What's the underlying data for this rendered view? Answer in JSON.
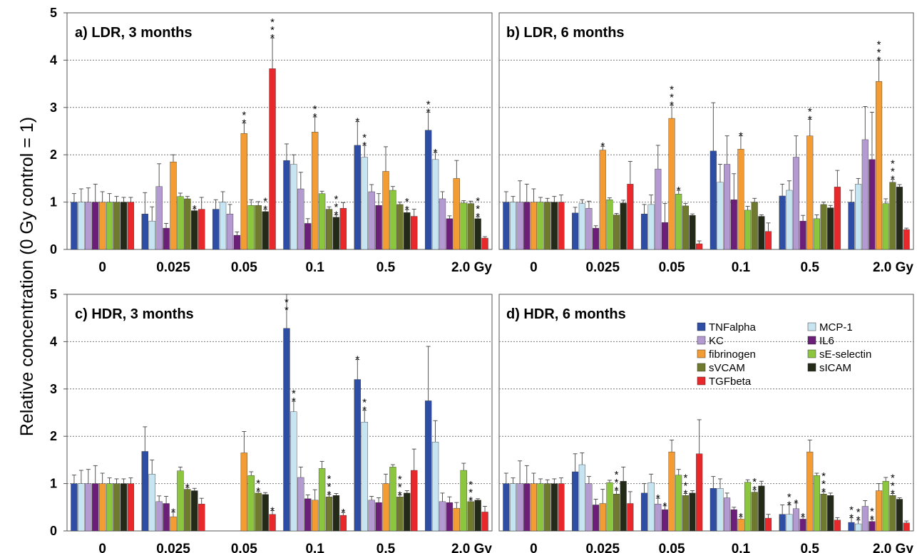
{
  "chart_data": {
    "type": "bar",
    "ylabel": "Relative concentration (0 Gy control = 1)",
    "ylim": [
      0,
      5
    ],
    "yticks": [
      0,
      1,
      2,
      3,
      4,
      5
    ],
    "grid": "horizontal dotted",
    "categories": [
      "0",
      "0.025",
      "0.05",
      "0.1",
      "0.5",
      "2.0 Gy"
    ],
    "legend": {
      "placement": "inside panel d, top-right",
      "entries": [
        {
          "name": "TNFalpha",
          "color": "#2e4ea6"
        },
        {
          "name": "MCP-1",
          "color": "#c6e4f2"
        },
        {
          "name": "KC",
          "color": "#b39ad0"
        },
        {
          "name": "IL6",
          "color": "#6b1f78"
        },
        {
          "name": "fibrinogen",
          "color": "#f39c33"
        },
        {
          "name": "sE-selectin",
          "color": "#8cc63f"
        },
        {
          "name": "sVCAM",
          "color": "#6f7a2e"
        },
        {
          "name": "sICAM",
          "color": "#232a18"
        },
        {
          "name": "TGFbeta",
          "color": "#e8282b"
        }
      ]
    },
    "panels": [
      {
        "title": "a) LDR, 3 months",
        "series": [
          {
            "name": "TNFalpha",
            "values": [
              1.0,
              0.75,
              0.85,
              1.88,
              2.2,
              2.52
            ],
            "errors": [
              0.18,
              0.45,
              0.2,
              0.35,
              0.5,
              0.38
            ],
            "stars": [
              0,
              0,
              0,
              0,
              1,
              2
            ]
          },
          {
            "name": "MCP-1",
            "values": [
              1.0,
              0.6,
              1.0,
              1.8,
              1.95,
              1.9
            ],
            "errors": [
              0.28,
              0.3,
              0.22,
              0.2,
              0.25,
              0.15
            ],
            "stars": [
              0,
              0,
              0,
              0,
              2,
              1
            ]
          },
          {
            "name": "KC",
            "values": [
              1.0,
              1.33,
              0.75,
              1.28,
              1.22,
              1.07
            ],
            "errors": [
              0.3,
              0.48,
              0.2,
              0.35,
              0.15,
              0.15
            ],
            "stars": [
              0,
              0,
              0,
              0,
              0,
              0
            ]
          },
          {
            "name": "IL6",
            "values": [
              1.0,
              0.45,
              0.3,
              0.55,
              0.93,
              0.65
            ],
            "errors": [
              0.38,
              0.1,
              0.07,
              0.1,
              0.25,
              0.06
            ],
            "stars": [
              0,
              0,
              0,
              0,
              0,
              0
            ]
          },
          {
            "name": "fibrinogen",
            "values": [
              1.0,
              1.85,
              2.45,
              2.48,
              1.65,
              1.5
            ],
            "errors": [
              0.22,
              0.15,
              0.22,
              0.32,
              0.52,
              0.38
            ],
            "stars": [
              0,
              0,
              2,
              2,
              0,
              0
            ]
          },
          {
            "name": "sE-selectin",
            "values": [
              1.0,
              1.12,
              0.93,
              1.18,
              1.25,
              0.98
            ],
            "errors": [
              0.18,
              0.07,
              0.12,
              0.05,
              0.08,
              0.05
            ],
            "stars": [
              0,
              0,
              0,
              0,
              0,
              0
            ]
          },
          {
            "name": "sVCAM",
            "values": [
              1.0,
              1.07,
              0.93,
              0.85,
              0.95,
              0.97
            ],
            "errors": [
              0.12,
              0.05,
              0.08,
              0.05,
              0.05,
              0.05
            ],
            "stars": [
              0,
              0,
              0,
              0,
              0,
              0
            ]
          },
          {
            "name": "sICAM",
            "values": [
              1.0,
              0.82,
              0.8,
              0.68,
              0.78,
              0.65
            ],
            "errors": [
              0.1,
              0.04,
              0.05,
              0.05,
              0.06,
              0.04
            ],
            "stars": [
              0,
              1,
              2,
              3,
              2,
              3
            ]
          },
          {
            "name": "TGFbeta",
            "values": [
              1.0,
              0.85,
              3.82,
              0.87,
              0.7,
              0.24
            ],
            "errors": [
              0.1,
              0.25,
              0.65,
              0.12,
              0.15,
              0.03
            ],
            "stars": [
              0,
              0,
              3,
              0,
              0,
              0
            ]
          }
        ]
      },
      {
        "title": "b) LDR, 6 months",
        "series": [
          {
            "name": "TNFalpha",
            "values": [
              1.0,
              0.77,
              0.75,
              2.08,
              1.13,
              1.0
            ],
            "errors": [
              0.22,
              0.12,
              0.2,
              1.02,
              0.25,
              0.25
            ],
            "stars": [
              0,
              0,
              0,
              0,
              0,
              0
            ]
          },
          {
            "name": "MCP-1",
            "values": [
              1.0,
              0.97,
              0.95,
              1.42,
              1.25,
              1.38
            ],
            "errors": [
              0.12,
              0.08,
              0.2,
              0.38,
              0.2,
              0.12
            ],
            "stars": [
              0,
              0,
              0,
              0,
              0,
              0
            ]
          },
          {
            "name": "KC",
            "values": [
              1.0,
              0.87,
              1.7,
              1.8,
              1.95,
              2.32
            ],
            "errors": [
              0.45,
              0.15,
              0.5,
              0.6,
              0.45,
              0.7
            ],
            "stars": [
              0,
              0,
              0,
              0,
              0,
              0
            ]
          },
          {
            "name": "IL6",
            "values": [
              1.0,
              0.45,
              0.57,
              1.05,
              0.6,
              1.9
            ],
            "errors": [
              0.38,
              0.05,
              0.4,
              0.55,
              0.12,
              1.0
            ],
            "stars": [
              0,
              0,
              0,
              0,
              0,
              0
            ]
          },
          {
            "name": "fibrinogen",
            "values": [
              1.0,
              2.1,
              2.77,
              2.12,
              2.4,
              3.55
            ],
            "errors": [
              0.28,
              0.08,
              0.28,
              0.28,
              0.35,
              0.45
            ],
            "stars": [
              0,
              1,
              3,
              1,
              2,
              3
            ]
          },
          {
            "name": "sE-selectin",
            "values": [
              1.0,
              1.05,
              1.17,
              0.83,
              0.65,
              0.97
            ],
            "errors": [
              0.1,
              0.04,
              0.08,
              0.08,
              0.08,
              0.1
            ],
            "stars": [
              0,
              0,
              1,
              0,
              0,
              0
            ]
          },
          {
            "name": "sVCAM",
            "values": [
              1.0,
              0.73,
              0.92,
              1.0,
              0.95,
              1.42
            ],
            "errors": [
              0.08,
              0.03,
              0.05,
              0.08,
              0.05,
              0.06
            ],
            "stars": [
              0,
              0,
              0,
              0,
              0,
              3
            ]
          },
          {
            "name": "sICAM",
            "values": [
              1.0,
              0.98,
              0.72,
              0.7,
              0.88,
              1.32
            ],
            "errors": [
              0.12,
              0.06,
              0.03,
              0.03,
              0.05,
              0.05
            ],
            "stars": [
              0,
              0,
              0,
              0,
              0,
              0
            ]
          },
          {
            "name": "TGFbeta",
            "values": [
              1.0,
              1.38,
              0.12,
              0.38,
              1.32,
              0.42
            ],
            "errors": [
              0.15,
              0.48,
              0.06,
              0.18,
              0.35,
              0.03
            ],
            "stars": [
              0,
              0,
              0,
              0,
              0,
              0
            ]
          }
        ]
      },
      {
        "title": "c) HDR, 3 months",
        "series": [
          {
            "name": "TNFalpha",
            "values": [
              1.0,
              1.68,
              0.0,
              4.28,
              3.2,
              2.75
            ],
            "errors": [
              0.18,
              0.52,
              0.0,
              0.72,
              0.42,
              1.15
            ],
            "stars": [
              0,
              0,
              0,
              2,
              1,
              0
            ]
          },
          {
            "name": "MCP-1",
            "values": [
              1.0,
              1.2,
              0.0,
              2.52,
              2.3,
              1.88
            ],
            "errors": [
              0.28,
              0.3,
              0.0,
              0.22,
              0.25,
              0.45
            ],
            "stars": [
              0,
              0,
              0,
              2,
              2,
              0
            ]
          },
          {
            "name": "KC",
            "values": [
              1.0,
              0.62,
              0.0,
              1.13,
              0.65,
              0.62
            ],
            "errors": [
              0.3,
              0.12,
              0.0,
              0.22,
              0.08,
              0.18
            ],
            "stars": [
              0,
              0,
              0,
              0,
              0,
              0
            ]
          },
          {
            "name": "IL6",
            "values": [
              1.0,
              0.58,
              0.0,
              0.68,
              0.6,
              0.6
            ],
            "errors": [
              0.38,
              0.15,
              0.0,
              0.08,
              0.1,
              0.12
            ],
            "stars": [
              0,
              0,
              0,
              0,
              0,
              0
            ]
          },
          {
            "name": "fibrinogen",
            "values": [
              1.0,
              0.3,
              1.65,
              0.65,
              1.0,
              0.48
            ],
            "errors": [
              0.22,
              0.1,
              0.45,
              0.22,
              0.2,
              0.12
            ],
            "stars": [
              0,
              1,
              0,
              0,
              0,
              0
            ]
          },
          {
            "name": "sE-selectin",
            "values": [
              1.0,
              1.27,
              1.17,
              1.32,
              1.35,
              1.28
            ],
            "errors": [
              0.12,
              0.08,
              0.08,
              0.15,
              0.05,
              0.15
            ],
            "stars": [
              0,
              0,
              0,
              0,
              0,
              0
            ]
          },
          {
            "name": "sVCAM",
            "values": [
              1.0,
              0.88,
              0.8,
              0.72,
              0.72,
              0.62
            ],
            "errors": [
              0.1,
              0.04,
              0.04,
              0.05,
              0.04,
              0.03
            ],
            "stars": [
              0,
              1,
              2,
              3,
              3,
              3
            ]
          },
          {
            "name": "sICAM",
            "values": [
              1.0,
              0.85,
              0.77,
              0.75,
              0.8,
              0.65
            ],
            "errors": [
              0.1,
              0.05,
              0.04,
              0.04,
              0.05,
              0.03
            ],
            "stars": [
              0,
              0,
              0,
              0,
              0,
              0
            ]
          },
          {
            "name": "TGFbeta",
            "values": [
              1.0,
              0.57,
              0.35,
              0.33,
              1.28,
              0.4
            ],
            "errors": [
              0.12,
              0.12,
              0.08,
              0.06,
              0.45,
              0.12
            ],
            "stars": [
              0,
              0,
              1,
              1,
              0,
              0
            ]
          }
        ]
      },
      {
        "title": "d) HDR, 6 months",
        "series": [
          {
            "name": "TNFalpha",
            "values": [
              1.0,
              1.25,
              0.8,
              0.9,
              0.35,
              0.18
            ],
            "errors": [
              0.22,
              0.38,
              0.2,
              0.25,
              0.2,
              0.1
            ],
            "stars": [
              0,
              0,
              0,
              0,
              0,
              2
            ]
          },
          {
            "name": "MCP-1",
            "values": [
              1.0,
              1.4,
              1.02,
              0.9,
              0.35,
              0.15
            ],
            "errors": [
              0.12,
              0.25,
              0.18,
              0.2,
              0.2,
              0.08
            ],
            "stars": [
              0,
              0,
              0,
              0,
              2,
              2
            ]
          },
          {
            "name": "KC",
            "values": [
              1.0,
              1.0,
              0.57,
              0.7,
              0.47,
              0.52
            ],
            "errors": [
              0.48,
              0.15,
              0.12,
              0.1,
              0.12,
              0.12
            ],
            "stars": [
              0,
              0,
              1,
              0,
              1,
              0
            ]
          },
          {
            "name": "IL6",
            "values": [
              1.0,
              0.55,
              0.45,
              0.45,
              0.25,
              0.2
            ],
            "errors": [
              0.38,
              0.12,
              0.08,
              0.05,
              0.05,
              0.05
            ],
            "stars": [
              0,
              0,
              1,
              0,
              1,
              2
            ]
          },
          {
            "name": "fibrinogen",
            "values": [
              1.0,
              0.58,
              1.67,
              0.25,
              1.67,
              0.85
            ],
            "errors": [
              0.22,
              0.3,
              0.25,
              0.05,
              0.25,
              0.15
            ],
            "stars": [
              0,
              0,
              0,
              1,
              0,
              0
            ]
          },
          {
            "name": "sE-selectin",
            "values": [
              1.0,
              1.02,
              1.18,
              1.03,
              1.17,
              1.05
            ],
            "errors": [
              0.1,
              0.05,
              0.12,
              0.05,
              0.05,
              0.08
            ],
            "stars": [
              0,
              0,
              0,
              0,
              0,
              0
            ]
          },
          {
            "name": "sVCAM",
            "values": [
              1.0,
              0.78,
              0.75,
              0.82,
              0.78,
              0.75
            ],
            "errors": [
              0.08,
              0.08,
              0.04,
              0.05,
              0.05,
              0.04
            ],
            "stars": [
              0,
              3,
              3,
              2,
              3,
              3
            ]
          },
          {
            "name": "sICAM",
            "values": [
              1.0,
              1.05,
              0.8,
              0.95,
              0.75,
              0.67
            ],
            "errors": [
              0.1,
              0.3,
              0.05,
              0.1,
              0.05,
              0.03
            ],
            "stars": [
              0,
              0,
              0,
              0,
              0,
              0
            ]
          },
          {
            "name": "TGFbeta",
            "values": [
              1.0,
              0.58,
              1.63,
              0.27,
              0.23,
              0.17
            ],
            "errors": [
              0.12,
              0.25,
              0.72,
              0.08,
              0.05,
              0.04
            ],
            "stars": [
              0,
              0,
              0,
              0,
              0,
              0
            ]
          }
        ]
      }
    ]
  }
}
